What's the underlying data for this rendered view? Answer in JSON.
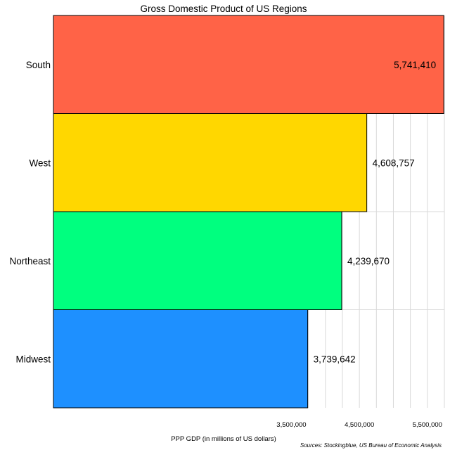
{
  "chart_data": {
    "type": "bar",
    "orientation": "horizontal",
    "title": "Gross Domestic Product of US Regions",
    "xlabel": "PPP GDP (in millions of US dollars)",
    "ylabel": "",
    "source": "Sources: Stockingblue, US Bureau of Economic Analysis",
    "categories": [
      "South",
      "West",
      "Northeast",
      "Midwest"
    ],
    "values": [
      5741410,
      4608757,
      4239670,
      3739642
    ],
    "value_labels": [
      "5,741,410",
      "4,608,757",
      "4,239,670",
      "3,739,642"
    ],
    "colors": [
      "#ff6347",
      "#ffd700",
      "#00ff7f",
      "#1e90ff"
    ],
    "xticks": [
      3500000,
      4500000,
      5500000
    ],
    "xtick_labels": [
      "3,500,000",
      "4,500,000",
      "5,500,000"
    ],
    "xlim": [
      0,
      5750000
    ],
    "grid": "vertical",
    "legend": "none"
  }
}
